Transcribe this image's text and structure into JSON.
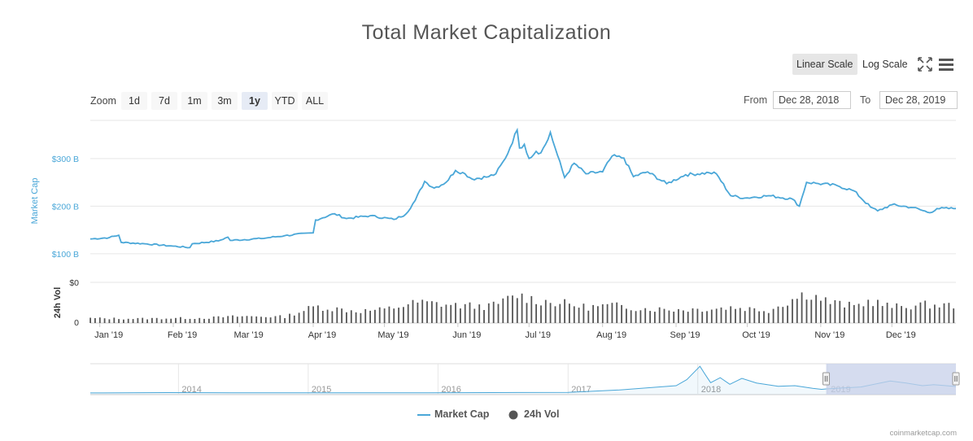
{
  "title": "Total Market Capitalization",
  "toolbar": {
    "linear_label": "Linear Scale",
    "log_label": "Log Scale",
    "fullscreen_icon": "fullscreen-icon",
    "menu_icon": "hamburger-menu-icon"
  },
  "zoom": {
    "label": "Zoom",
    "buttons": [
      "1d",
      "7d",
      "1m",
      "3m",
      "1y",
      "YTD",
      "ALL"
    ],
    "active": "1y"
  },
  "range": {
    "from_label": "From",
    "from_value": "Dec 28, 2018",
    "to_label": "To",
    "to_value": "Dec 28, 2019"
  },
  "colors": {
    "line": "#4aa7d8",
    "volume": "#555555",
    "navigator_mask": "#c7d0ea",
    "axis_blue": "#4aa7d8"
  },
  "chart_data": {
    "type": "line",
    "x_range": [
      "2018-12-28",
      "2019-12-28"
    ],
    "series": [
      {
        "name": "Market Cap",
        "unit": "B USD",
        "points": [
          [
            "2018-12-28",
            131
          ],
          [
            "2019-01-05",
            134
          ],
          [
            "2019-01-09",
            139
          ],
          [
            "2019-01-10",
            124
          ],
          [
            "2019-01-20",
            121
          ],
          [
            "2019-02-01",
            116
          ],
          [
            "2019-02-08",
            113
          ],
          [
            "2019-02-09",
            121
          ],
          [
            "2019-02-20",
            127
          ],
          [
            "2019-02-24",
            135
          ],
          [
            "2019-02-25",
            128
          ],
          [
            "2019-03-10",
            132
          ],
          [
            "2019-03-20",
            138
          ],
          [
            "2019-04-01",
            144
          ],
          [
            "2019-04-02",
            171
          ],
          [
            "2019-04-10",
            184
          ],
          [
            "2019-04-15",
            174
          ],
          [
            "2019-04-25",
            180
          ],
          [
            "2019-05-05",
            172
          ],
          [
            "2019-05-10",
            183
          ],
          [
            "2019-05-14",
            212
          ],
          [
            "2019-05-18",
            252
          ],
          [
            "2019-05-22",
            238
          ],
          [
            "2019-05-27",
            250
          ],
          [
            "2019-05-31",
            275
          ],
          [
            "2019-06-04",
            268
          ],
          [
            "2019-06-07",
            257
          ],
          [
            "2019-06-14",
            262
          ],
          [
            "2019-06-17",
            268
          ],
          [
            "2019-06-21",
            300
          ],
          [
            "2019-06-26",
            360
          ],
          [
            "2019-06-27",
            322
          ],
          [
            "2019-06-29",
            330
          ],
          [
            "2019-07-01",
            300
          ],
          [
            "2019-07-04",
            315
          ],
          [
            "2019-07-06",
            312
          ],
          [
            "2019-07-09",
            340
          ],
          [
            "2019-07-10",
            355
          ],
          [
            "2019-07-12",
            322
          ],
          [
            "2019-07-16",
            260
          ],
          [
            "2019-07-20",
            290
          ],
          [
            "2019-07-25",
            268
          ],
          [
            "2019-08-01",
            272
          ],
          [
            "2019-08-05",
            305
          ],
          [
            "2019-08-10",
            301
          ],
          [
            "2019-08-14",
            262
          ],
          [
            "2019-08-20",
            272
          ],
          [
            "2019-08-28",
            247
          ],
          [
            "2019-09-05",
            266
          ],
          [
            "2019-09-15",
            270
          ],
          [
            "2019-09-18",
            268
          ],
          [
            "2019-09-24",
            222
          ],
          [
            "2019-09-30",
            217
          ],
          [
            "2019-10-10",
            222
          ],
          [
            "2019-10-20",
            215
          ],
          [
            "2019-10-23",
            200
          ],
          [
            "2019-10-26",
            250
          ],
          [
            "2019-10-30",
            248
          ],
          [
            "2019-11-08",
            243
          ],
          [
            "2019-11-15",
            232
          ],
          [
            "2019-11-22",
            198
          ],
          [
            "2019-11-25",
            190
          ],
          [
            "2019-12-01",
            203
          ],
          [
            "2019-12-10",
            197
          ],
          [
            "2019-12-17",
            186
          ],
          [
            "2019-12-20",
            195
          ],
          [
            "2019-12-28",
            195
          ]
        ]
      },
      {
        "name": "24h Vol",
        "unit": "B USD",
        "points": [
          [
            "2018-12-28",
            12
          ],
          [
            "2019-01-15",
            11
          ],
          [
            "2019-02-15",
            13
          ],
          [
            "2019-03-01",
            17
          ],
          [
            "2019-03-20",
            16
          ],
          [
            "2019-04-02",
            42
          ],
          [
            "2019-04-10",
            36
          ],
          [
            "2019-04-20",
            30
          ],
          [
            "2019-05-01",
            34
          ],
          [
            "2019-05-15",
            52
          ],
          [
            "2019-05-25",
            48
          ],
          [
            "2019-06-01",
            44
          ],
          [
            "2019-06-15",
            42
          ],
          [
            "2019-06-26",
            70
          ],
          [
            "2019-07-05",
            56
          ],
          [
            "2019-07-15",
            50
          ],
          [
            "2019-07-25",
            40
          ],
          [
            "2019-08-05",
            44
          ],
          [
            "2019-08-20",
            36
          ],
          [
            "2019-09-01",
            34
          ],
          [
            "2019-09-15",
            36
          ],
          [
            "2019-09-25",
            40
          ],
          [
            "2019-10-10",
            32
          ],
          [
            "2019-10-26",
            76
          ],
          [
            "2019-11-05",
            52
          ],
          [
            "2019-11-15",
            42
          ],
          [
            "2019-11-22",
            56
          ],
          [
            "2019-12-01",
            40
          ],
          [
            "2019-12-15",
            46
          ],
          [
            "2019-12-28",
            44
          ]
        ]
      }
    ],
    "y_axis": {
      "label": "Market Cap",
      "tick_labels": [
        "$100 B",
        "$200 B",
        "$300 B"
      ],
      "ticks": [
        100,
        200,
        300
      ],
      "range": [
        40,
        380
      ]
    },
    "volume_axis": {
      "label": "24h Vol",
      "tick_labels": [
        "$0",
        "0"
      ],
      "range": [
        0,
        100
      ]
    },
    "x_tick_labels": [
      "Jan '19",
      "Feb '19",
      "Mar '19",
      "Apr '19",
      "May '19",
      "Jun '19",
      "Jul '19",
      "Aug '19",
      "Sep '19",
      "Oct '19",
      "Nov '19",
      "Dec '19"
    ],
    "x_ticks": [
      "2019-01-01",
      "2019-02-01",
      "2019-03-01",
      "2019-04-01",
      "2019-05-01",
      "2019-06-01",
      "2019-07-01",
      "2019-08-01",
      "2019-09-01",
      "2019-10-01",
      "2019-11-01",
      "2019-12-01"
    ],
    "navigator": {
      "x_range": [
        "2013-04-28",
        "2019-12-28"
      ],
      "tick_labels": [
        "2014",
        "2015",
        "2016",
        "2017",
        "2018",
        "2019"
      ],
      "ticks": [
        "2014-01-01",
        "2015-01-01",
        "2016-01-01",
        "2017-01-01",
        "2018-01-01",
        "2019-01-01"
      ],
      "points": [
        [
          "2013-04-28",
          2
        ],
        [
          "2013-11-30",
          12
        ],
        [
          "2014-06-01",
          8
        ],
        [
          "2015-01-01",
          5
        ],
        [
          "2015-12-01",
          6
        ],
        [
          "2016-06-01",
          12
        ],
        [
          "2017-01-01",
          18
        ],
        [
          "2017-05-25",
          90
        ],
        [
          "2017-09-01",
          170
        ],
        [
          "2017-11-01",
          220
        ],
        [
          "2017-12-01",
          400
        ],
        [
          "2018-01-07",
          800
        ],
        [
          "2018-01-20",
          580
        ],
        [
          "2018-02-06",
          310
        ],
        [
          "2018-03-05",
          460
        ],
        [
          "2018-04-01",
          260
        ],
        [
          "2018-05-05",
          440
        ],
        [
          "2018-06-15",
          300
        ],
        [
          "2018-08-15",
          200
        ],
        [
          "2018-10-01",
          220
        ],
        [
          "2018-11-20",
          140
        ],
        [
          "2018-12-15",
          110
        ],
        [
          "2019-01-01",
          125
        ],
        [
          "2019-04-05",
          180
        ],
        [
          "2019-06-26",
          360
        ],
        [
          "2019-08-10",
          300
        ],
        [
          "2019-09-25",
          220
        ],
        [
          "2019-10-26",
          250
        ],
        [
          "2019-12-28",
          195
        ]
      ],
      "selected_range": [
        "2018-12-28",
        "2019-12-28"
      ]
    },
    "legend": [
      "Market Cap",
      "24h Vol"
    ],
    "legend_placement": "bottom-center",
    "grid": true
  },
  "credits": "coinmarketcap.com"
}
